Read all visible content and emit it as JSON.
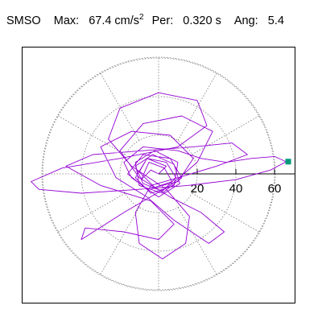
{
  "header": {
    "station": "SMSO",
    "max_label": "Max:",
    "max_value": "67.4 cm/s",
    "max_exp": "2",
    "per_label": "Per:",
    "per_value": "0.320 s",
    "ang_label": "Ang:",
    "ang_value": "5.4"
  },
  "chart_data": {
    "type": "polar-orbit",
    "rings": [
      20,
      40,
      60
    ],
    "ring_labels": [
      "20",
      "40",
      "60"
    ],
    "angular_divisions_deg": 30,
    "max_amplitude": 67.4,
    "max_point_angle_deg": 5.4,
    "colors": {
      "trace": "#9400d3",
      "marker": "#009a7a",
      "grid": "#7a7a7a",
      "axis": "#000000"
    },
    "trace_xy": [
      [
        0,
        0
      ],
      [
        -4,
        2
      ],
      [
        -9,
        -3
      ],
      [
        -5,
        6
      ],
      [
        3,
        3
      ],
      [
        7,
        -4
      ],
      [
        -2,
        -7
      ],
      [
        -10,
        1
      ],
      [
        -6,
        8
      ],
      [
        4,
        6
      ],
      [
        9,
        -2
      ],
      [
        2,
        -9
      ],
      [
        -8,
        -5
      ],
      [
        -12,
        4
      ],
      [
        -3,
        10
      ],
      [
        8,
        5
      ],
      [
        11,
        -5
      ],
      [
        0,
        -12
      ],
      [
        -14,
        -2
      ],
      [
        -18,
        6
      ],
      [
        -8,
        14
      ],
      [
        10,
        12
      ],
      [
        22,
        8
      ],
      [
        35,
        6
      ],
      [
        48,
        8
      ],
      [
        60,
        9
      ],
      [
        66,
        6.3
      ],
      [
        58,
        2
      ],
      [
        40,
        -3
      ],
      [
        15,
        -6
      ],
      [
        -10,
        -8
      ],
      [
        -40,
        -10
      ],
      [
        -62,
        -8
      ],
      [
        -66,
        -4
      ],
      [
        -50,
        3
      ],
      [
        -20,
        8
      ],
      [
        10,
        14
      ],
      [
        25,
        25
      ],
      [
        20,
        38
      ],
      [
        0,
        42
      ],
      [
        -20,
        34
      ],
      [
        -26,
        18
      ],
      [
        -14,
        4
      ],
      [
        4,
        -8
      ],
      [
        16,
        -22
      ],
      [
        14,
        -36
      ],
      [
        2,
        -44
      ],
      [
        -10,
        -36
      ],
      [
        -12,
        -20
      ],
      [
        -4,
        -6
      ],
      [
        10,
        -2
      ],
      [
        30,
        4
      ],
      [
        46,
        10
      ],
      [
        38,
        16
      ],
      [
        18,
        14
      ],
      [
        -8,
        12
      ],
      [
        -34,
        10
      ],
      [
        -48,
        4
      ],
      [
        -30,
        -6
      ],
      [
        -4,
        -14
      ],
      [
        8,
        -26
      ],
      [
        0,
        -34
      ],
      [
        -18,
        -30
      ],
      [
        -38,
        -28
      ],
      [
        -40,
        -34
      ],
      [
        -18,
        -20
      ],
      [
        6,
        -6
      ],
      [
        20,
        6
      ],
      [
        28,
        22
      ],
      [
        12,
        30
      ],
      [
        -8,
        26
      ],
      [
        -20,
        12
      ],
      [
        -10,
        -2
      ],
      [
        6,
        -12
      ],
      [
        22,
        -20
      ],
      [
        34,
        -30
      ],
      [
        26,
        -36
      ],
      [
        8,
        -24
      ],
      [
        -6,
        -12
      ],
      [
        -22,
        -2
      ],
      [
        -30,
        14
      ],
      [
        -14,
        22
      ],
      [
        6,
        20
      ],
      [
        18,
        8
      ],
      [
        10,
        -4
      ],
      [
        -6,
        -8
      ],
      [
        -16,
        0
      ],
      [
        -8,
        10
      ],
      [
        6,
        8
      ],
      [
        12,
        -2
      ],
      [
        2,
        -10
      ],
      [
        -10,
        -6
      ],
      [
        -12,
        6
      ],
      [
        -2,
        12
      ],
      [
        10,
        6
      ],
      [
        8,
        -6
      ],
      [
        -4,
        -10
      ],
      [
        -12,
        -2
      ],
      [
        -6,
        8
      ],
      [
        4,
        4
      ],
      [
        0,
        0
      ]
    ]
  }
}
